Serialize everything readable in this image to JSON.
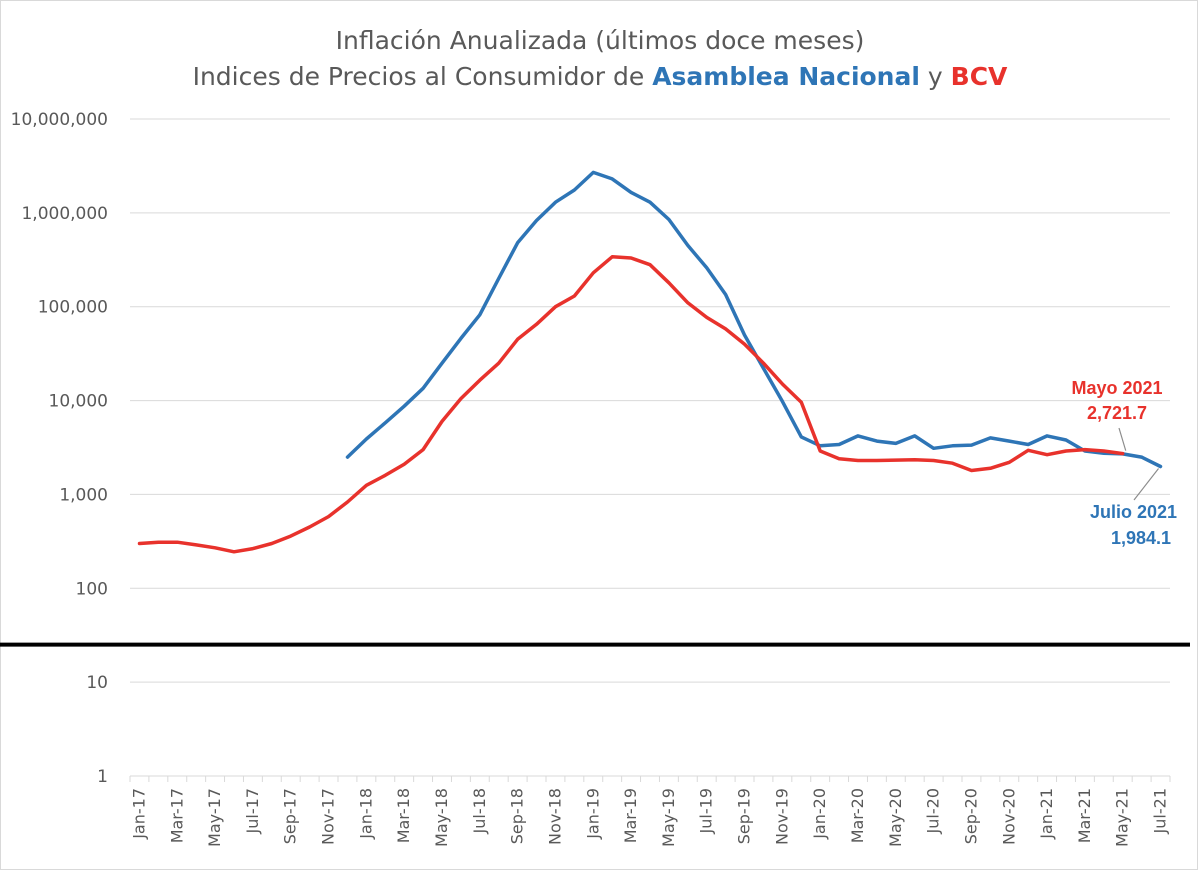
{
  "colors": {
    "an": "#2e75b6",
    "bcv": "#e8322c",
    "grid": "#d9d9d9",
    "text": "#595959",
    "cut": "#000000"
  },
  "title_line1": "Inflación Anualizada (últimos doce meses)",
  "title_line2_prefix": "Indices de Precios al Consumidor de ",
  "title_line2_an": "Asamblea Nacional",
  "title_line2_mid": " y ",
  "title_line2_bcv": "BCV",
  "annotation_bcv": {
    "line1": "Mayo 2021",
    "line2": "2,721.7"
  },
  "annotation_an": {
    "line1": "Julio 2021",
    "line2": "1,984.1"
  },
  "chart_data": {
    "type": "line",
    "y_scale": "log",
    "ylim": [
      1,
      10000000
    ],
    "grid": true,
    "y_ticks": [
      {
        "value": 1,
        "label": "1"
      },
      {
        "value": 10,
        "label": "10"
      },
      {
        "value": 100,
        "label": "100"
      },
      {
        "value": 1000,
        "label": "1,000"
      },
      {
        "value": 10000,
        "label": "10,000"
      },
      {
        "value": 100000,
        "label": "100,000"
      },
      {
        "value": 1000000,
        "label": "1,000,000"
      },
      {
        "value": 10000000,
        "label": "10,000,000"
      }
    ],
    "x": [
      "Jan-17",
      "Feb-17",
      "Mar-17",
      "Apr-17",
      "May-17",
      "Jun-17",
      "Jul-17",
      "Aug-17",
      "Sep-17",
      "Oct-17",
      "Nov-17",
      "Dec-17",
      "Jan-18",
      "Feb-18",
      "Mar-18",
      "Apr-18",
      "May-18",
      "Jun-18",
      "Jul-18",
      "Aug-18",
      "Sep-18",
      "Oct-18",
      "Nov-18",
      "Dec-18",
      "Jan-19",
      "Feb-19",
      "Mar-19",
      "Apr-19",
      "May-19",
      "Jun-19",
      "Jul-19",
      "Aug-19",
      "Sep-19",
      "Oct-19",
      "Nov-19",
      "Dec-19",
      "Jan-20",
      "Feb-20",
      "Mar-20",
      "Apr-20",
      "May-20",
      "Jun-20",
      "Jul-20",
      "Aug-20",
      "Sep-20",
      "Oct-20",
      "Nov-20",
      "Dec-20",
      "Jan-21",
      "Feb-21",
      "Mar-21",
      "Apr-21",
      "May-21",
      "Jun-21",
      "Jul-21"
    ],
    "x_tick_labels": [
      "Jan-17",
      "Mar-17",
      "May-17",
      "Jul-17",
      "Sep-17",
      "Nov-17",
      "Jan-18",
      "Mar-18",
      "May-18",
      "Jul-18",
      "Sep-18",
      "Nov-18",
      "Jan-19",
      "Mar-19",
      "May-19",
      "Jul-19",
      "Sep-19",
      "Nov-19",
      "Jan-20",
      "Mar-20",
      "May-20",
      "Jul-20",
      "Sep-20",
      "Nov-20",
      "Jan-21",
      "Mar-21",
      "May-21",
      "Jul-21"
    ],
    "series": [
      {
        "name": "Asamblea Nacional",
        "color": "#2e75b6",
        "values": [
          null,
          null,
          null,
          null,
          null,
          null,
          null,
          null,
          null,
          null,
          null,
          2500,
          3900,
          5800,
          8700,
          13500,
          25000,
          46000,
          82000,
          200000,
          480000,
          830000,
          1300000,
          1750000,
          2700000,
          2300000,
          1650000,
          1300000,
          850000,
          450000,
          260000,
          135000,
          50000,
          22000,
          9800,
          4100,
          3300,
          3400,
          4200,
          3700,
          3500,
          4200,
          3100,
          3300,
          3350,
          4000,
          3700,
          3400,
          4200,
          3800,
          2900,
          2750,
          2700,
          2500,
          1984.1
        ]
      },
      {
        "name": "BCV",
        "color": "#e8322c",
        "values": [
          300,
          310,
          310,
          290,
          270,
          245,
          265,
          300,
          360,
          450,
          580,
          830,
          1250,
          1600,
          2100,
          3000,
          6000,
          10500,
          16500,
          25000,
          45000,
          65000,
          100000,
          130000,
          230000,
          340000,
          330000,
          280000,
          180000,
          110000,
          77000,
          58000,
          40000,
          25000,
          15000,
          9600,
          2900,
          2400,
          2300,
          2300,
          2320,
          2340,
          2300,
          2150,
          1800,
          1900,
          2200,
          2950,
          2650,
          2900,
          3000,
          2900,
          2721.7,
          null,
          null
        ]
      }
    ]
  }
}
